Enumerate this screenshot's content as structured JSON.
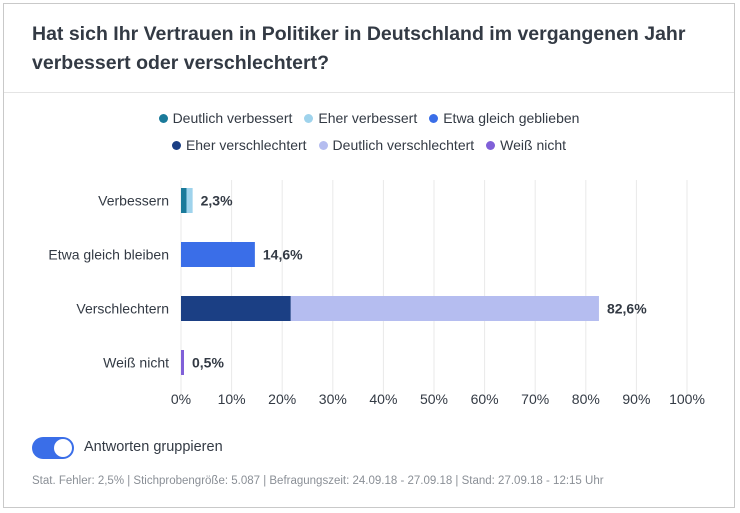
{
  "chart_data": {
    "type": "bar",
    "title": "Hat sich Ihr Vertrauen in Politiker in Deutschland im vergangenen Jahr verbessert oder verschlechtert?",
    "orientation": "horizontal",
    "stacked": true,
    "categories": [
      "Verbessern",
      "Etwa gleich bleiben",
      "Verschlechtern",
      "Weiß nicht"
    ],
    "totals": [
      "2,3%",
      "14,6%",
      "82,6%",
      "0,5%"
    ],
    "series": [
      {
        "name": "Deutlich verbessert",
        "color": "#1a7a9a",
        "values": [
          1.1,
          0,
          0,
          0
        ]
      },
      {
        "name": "Eher verbessert",
        "color": "#9fd3ec",
        "values": [
          1.2,
          0,
          0,
          0
        ]
      },
      {
        "name": "Etwa gleich geblieben",
        "color": "#3a6ee8",
        "values": [
          0,
          14.6,
          0,
          0
        ]
      },
      {
        "name": "Eher verschlechtert",
        "color": "#1b3f84",
        "values": [
          0,
          0,
          21.7,
          0
        ]
      },
      {
        "name": "Deutlich verschlechtert",
        "color": "#b5bdf0",
        "values": [
          0,
          0,
          60.9,
          0
        ]
      },
      {
        "name": "Weiß nicht",
        "color": "#8060d8",
        "values": [
          0,
          0,
          0,
          0.5
        ]
      }
    ],
    "xlim": [
      0,
      100
    ],
    "xticks": [
      "0%",
      "10%",
      "20%",
      "30%",
      "40%",
      "50%",
      "60%",
      "70%",
      "80%",
      "90%",
      "100%"
    ],
    "legend_position": "top",
    "grid": true
  },
  "toggle": {
    "label": "Antworten gruppieren",
    "on": true
  },
  "footer": {
    "text": "Stat. Fehler: 2,5% | Stichprobengröße: 5.087 | Befragungszeit: 24.09.18 - 27.09.18 | Stand: 27.09.18 - 12:15 Uhr"
  }
}
